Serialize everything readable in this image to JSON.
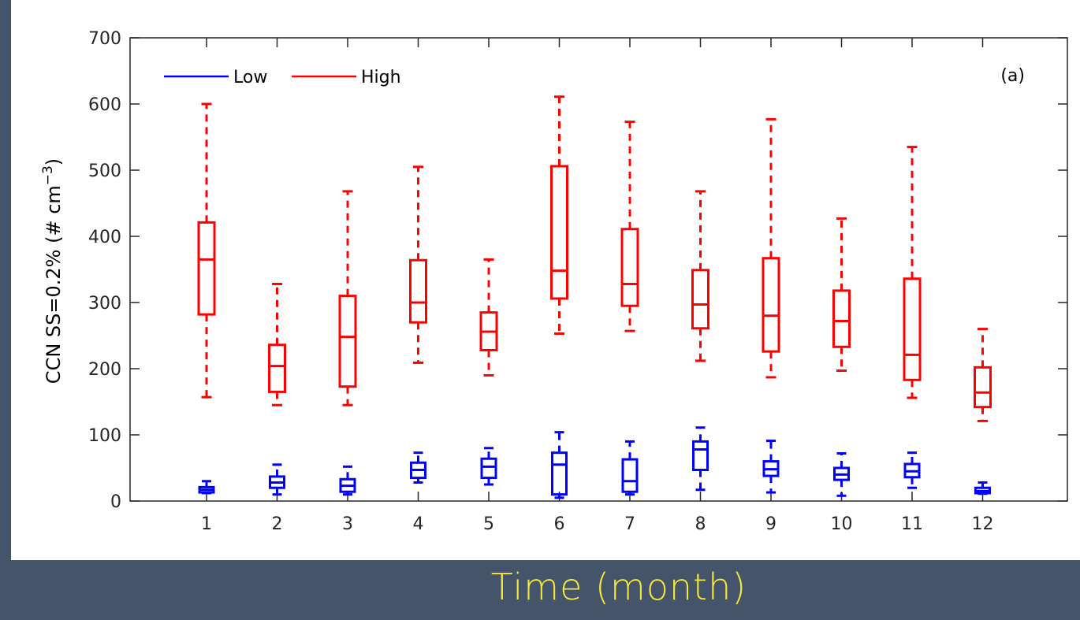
{
  "chart_data": {
    "type": "box",
    "panel_label": "(a)",
    "ylabel": "CCN SS=0.2% (# cm",
    "ylabel_exp": "−3",
    "ylabel_close": ")",
    "xlabel": "Time (month)",
    "ylim": [
      0,
      700
    ],
    "yticks": [
      0,
      100,
      200,
      300,
      400,
      500,
      600,
      700
    ],
    "categories": [
      "1",
      "2",
      "3",
      "4",
      "5",
      "6",
      "7",
      "8",
      "9",
      "10",
      "11",
      "12"
    ],
    "legend": {
      "position": "top-left",
      "items": [
        {
          "label": "Low",
          "color": "#0000ff"
        },
        {
          "label": "High",
          "color": "#ff0000"
        }
      ]
    },
    "series": [
      {
        "name": "Low",
        "color": "#0000ff",
        "boxes": [
          {
            "min": 12,
            "q1": 13,
            "median": 17,
            "q3": 21,
            "max": 30
          },
          {
            "min": 10,
            "q1": 20,
            "median": 28,
            "q3": 37,
            "max": 55
          },
          {
            "min": 10,
            "q1": 14,
            "median": 23,
            "q3": 33,
            "max": 52
          },
          {
            "min": 28,
            "q1": 35,
            "median": 47,
            "q3": 58,
            "max": 73
          },
          {
            "min": 25,
            "q1": 35,
            "median": 52,
            "q3": 64,
            "max": 80
          },
          {
            "min": 5,
            "q1": 10,
            "median": 55,
            "q3": 73,
            "max": 104
          },
          {
            "min": 10,
            "q1": 14,
            "median": 30,
            "q3": 63,
            "max": 90
          },
          {
            "min": 17,
            "q1": 47,
            "median": 78,
            "q3": 90,
            "max": 111
          },
          {
            "min": 13,
            "q1": 38,
            "median": 48,
            "q3": 60,
            "max": 91
          },
          {
            "min": 8,
            "q1": 32,
            "median": 40,
            "q3": 50,
            "max": 72
          },
          {
            "min": 20,
            "q1": 36,
            "median": 45,
            "q3": 56,
            "max": 73
          },
          {
            "min": 11,
            "q1": 12,
            "median": 15,
            "q3": 20,
            "max": 28
          }
        ]
      },
      {
        "name": "High",
        "color": "#ff0000",
        "boxes": [
          {
            "min": 157,
            "q1": 282,
            "median": 365,
            "q3": 421,
            "max": 600
          },
          {
            "min": 145,
            "q1": 165,
            "median": 204,
            "q3": 236,
            "max": 328
          },
          {
            "min": 145,
            "q1": 173,
            "median": 248,
            "q3": 310,
            "max": 468
          },
          {
            "min": 209,
            "q1": 270,
            "median": 300,
            "q3": 364,
            "max": 505
          },
          {
            "min": 190,
            "q1": 228,
            "median": 256,
            "q3": 285,
            "max": 365
          },
          {
            "min": 253,
            "q1": 306,
            "median": 348,
            "q3": 506,
            "max": 611
          },
          {
            "min": 257,
            "q1": 295,
            "median": 328,
            "q3": 411,
            "max": 573
          },
          {
            "min": 212,
            "q1": 261,
            "median": 297,
            "q3": 349,
            "max": 468
          },
          {
            "min": 187,
            "q1": 226,
            "median": 280,
            "q3": 367,
            "max": 577
          },
          {
            "min": 197,
            "q1": 233,
            "median": 272,
            "q3": 318,
            "max": 427
          },
          {
            "min": 156,
            "q1": 183,
            "median": 221,
            "q3": 336,
            "max": 535
          },
          {
            "min": 121,
            "q1": 142,
            "median": 164,
            "q3": 202,
            "max": 260
          }
        ]
      }
    ]
  }
}
